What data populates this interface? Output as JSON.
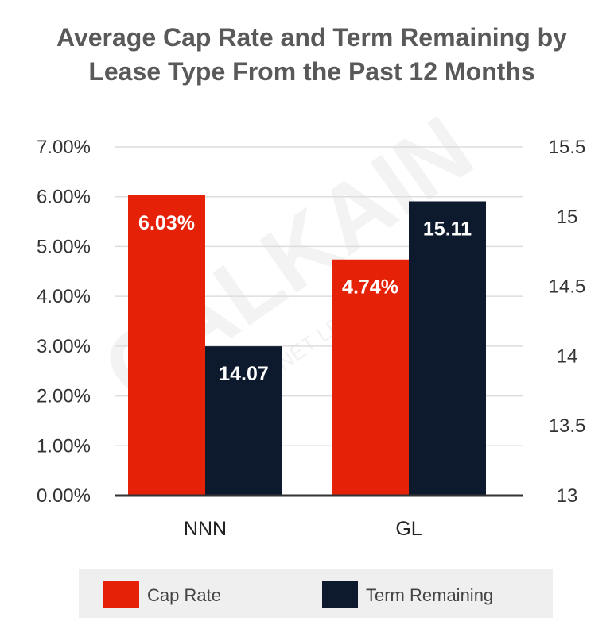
{
  "chart_data": {
    "type": "bar",
    "title_lines": [
      "Average Cap Rate and Term Remaining by",
      "Lease Type From the Past 12 Months"
    ],
    "categories": [
      "NNN",
      "GL"
    ],
    "series": [
      {
        "name": "Cap Rate",
        "axis": "left",
        "values": [
          6.03,
          4.74
        ],
        "labels": [
          "6.03%",
          "4.74%"
        ],
        "color": "#e52207"
      },
      {
        "name": "Term Remaining",
        "axis": "right",
        "values": [
          14.07,
          15.11
        ],
        "labels": [
          "14.07",
          "15.11"
        ],
        "color": "#0d1a2e"
      }
    ],
    "y_left": {
      "min": 0,
      "max": 7,
      "step": 1,
      "tick_labels": [
        "0.00%",
        "1.00%",
        "2.00%",
        "3.00%",
        "4.00%",
        "5.00%",
        "6.00%",
        "7.00%"
      ]
    },
    "y_right": {
      "min": 13,
      "max": 15.5,
      "step": 0.5,
      "tick_labels": [
        "13",
        "13.5",
        "14",
        "14.5",
        "15",
        "15.5"
      ]
    },
    "grid": true,
    "legend_position": "bottom",
    "watermark": {
      "main": "CALKAIN",
      "sub": "AMERICA'S NET LEASE COMPANY"
    }
  }
}
